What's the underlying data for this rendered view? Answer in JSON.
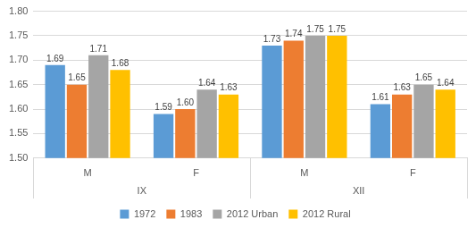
{
  "chart_data": {
    "type": "bar",
    "categories": [
      "M",
      "F",
      "M",
      "F"
    ],
    "category_groups": [
      "IX",
      "IX",
      "XII",
      "XII"
    ],
    "series": [
      {
        "name": "1972",
        "color": "#5B9BD5",
        "values": [
          1.69,
          1.59,
          1.73,
          1.61
        ],
        "value_labels": [
          "1.69",
          "1.59",
          "1.73",
          "1.61"
        ]
      },
      {
        "name": "1983",
        "color": "#ED7D31",
        "values": [
          1.65,
          1.6,
          1.74,
          1.63
        ],
        "value_labels": [
          "1.65",
          "1.60",
          "1.74",
          "1.63"
        ]
      },
      {
        "name": "2012 Urban",
        "color": "#A5A5A5",
        "values": [
          1.71,
          1.64,
          1.75,
          1.65
        ],
        "value_labels": [
          "1.71",
          "1.64",
          "1.75",
          "1.65"
        ]
      },
      {
        "name": "2012 Rural",
        "color": "#FFC000",
        "values": [
          1.68,
          1.63,
          1.75,
          1.64
        ],
        "value_labels": [
          "1.68",
          "1.63",
          "1.75",
          "1.64"
        ]
      }
    ],
    "ylim": [
      1.5,
      1.8
    ],
    "yticks": [
      {
        "value": 1.5,
        "label": "1.50"
      },
      1.55,
      {
        "value": 1.6,
        "label": "1.60"
      },
      1.65,
      {
        "value": 1.7,
        "label": "1.70"
      },
      1.75,
      {
        "value": 1.8,
        "label": "1.80"
      }
    ],
    "grid": true,
    "legend": "bottom",
    "data_labels": true
  }
}
